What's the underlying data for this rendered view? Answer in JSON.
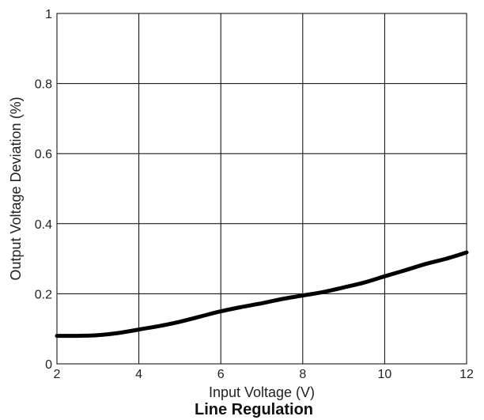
{
  "chart_data": {
    "type": "line",
    "title": "Line Regulation",
    "xlabel": "Input Voltage (V)",
    "ylabel": "Output Voltage Deviation (%)",
    "xlim": [
      2,
      12
    ],
    "ylim": [
      0,
      1
    ],
    "grid": true,
    "x_ticks": [
      2,
      4,
      6,
      8,
      10,
      12
    ],
    "y_ticks": [
      0,
      0.2,
      0.4,
      0.6,
      0.8,
      1
    ],
    "x_tick_labels": [
      "2",
      "4",
      "6",
      "8",
      "10",
      "12"
    ],
    "y_tick_labels": [
      "0",
      "0.2",
      "0.4",
      "0.6",
      "0.8",
      "1"
    ],
    "series": [
      {
        "color": "#000000",
        "x": [
          2,
          2.5,
          3,
          3.5,
          4,
          4.5,
          5,
          5.5,
          6,
          6.5,
          7,
          7.5,
          8,
          8.5,
          9,
          9.5,
          10,
          10.5,
          11,
          11.5,
          12
        ],
        "y": [
          0.08,
          0.08,
          0.082,
          0.088,
          0.098,
          0.108,
          0.12,
          0.135,
          0.15,
          0.162,
          0.173,
          0.185,
          0.195,
          0.205,
          0.218,
          0.232,
          0.25,
          0.267,
          0.285,
          0.3,
          0.318
        ]
      }
    ]
  }
}
